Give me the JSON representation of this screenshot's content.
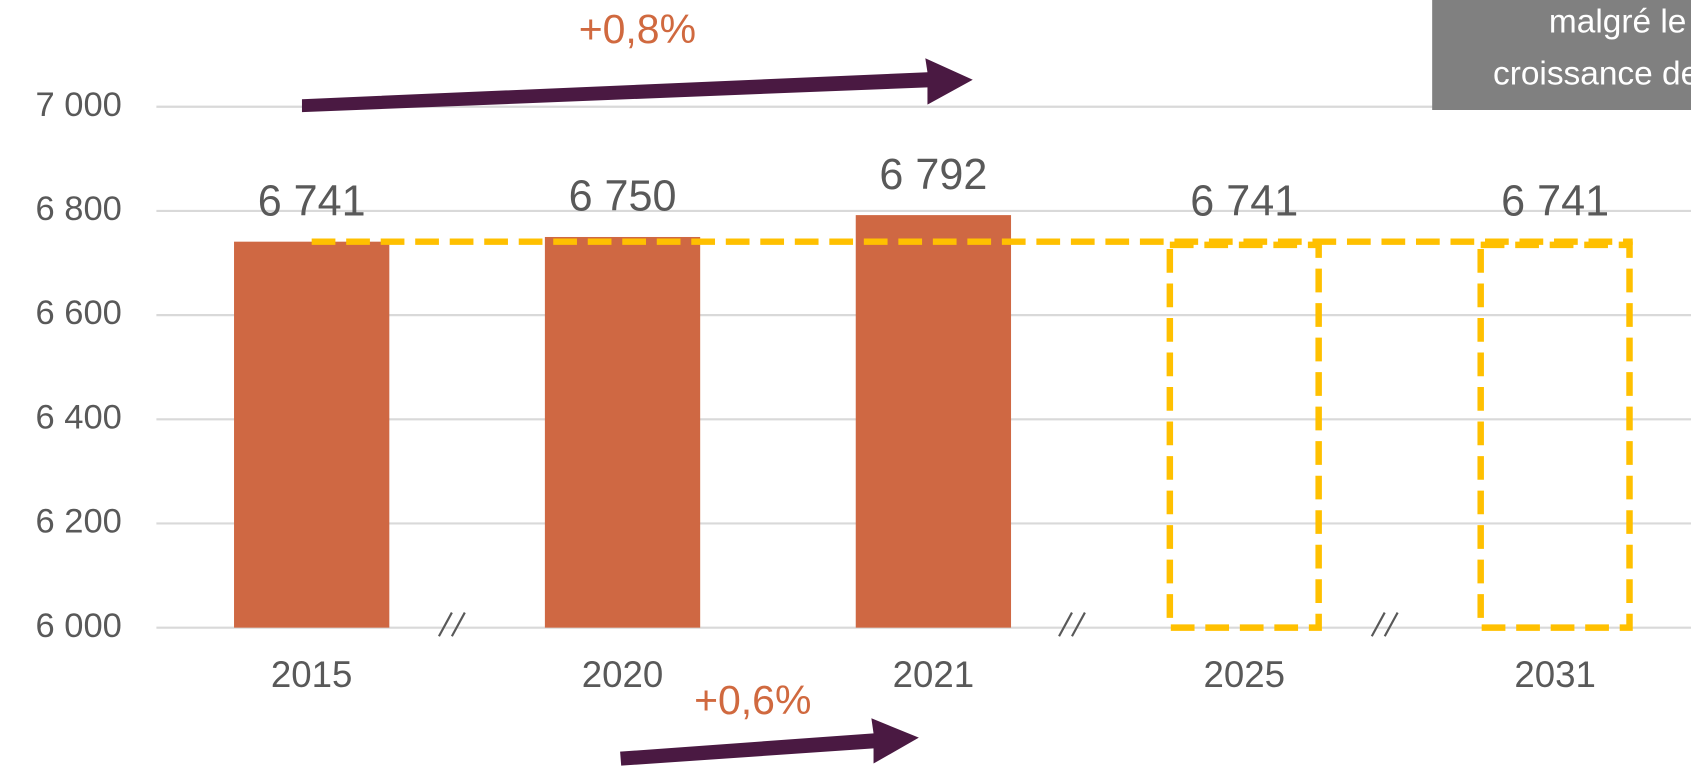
{
  "chart_data": {
    "type": "bar",
    "categories": [
      "2015",
      "2020",
      "2021",
      "2025",
      "2031"
    ],
    "values": [
      6741,
      6750,
      6792,
      6741,
      6741
    ],
    "value_labels": [
      "6 741",
      "6 750",
      "6 792",
      "6 741",
      "6 741"
    ],
    "bar_styles": [
      "solid",
      "solid",
      "solid",
      "dashed",
      "dashed"
    ],
    "color": "#CF6843",
    "outline_color": "#FFC000",
    "ylim": [
      6000,
      7000
    ],
    "yticks": [
      {
        "value": 6000,
        "label": "6 000"
      },
      {
        "value": 6200,
        "label": "6 200"
      },
      {
        "value": 6400,
        "label": "6 400"
      },
      {
        "value": 6600,
        "label": "6 600"
      },
      {
        "value": 6800,
        "label": "6 800"
      },
      {
        "value": 7000,
        "label": "7 000"
      }
    ],
    "grid": true,
    "annotations": [
      "+0,8%",
      "+0,6%"
    ],
    "note_lines": [
      "malgré le",
      "croissance de"
    ]
  }
}
